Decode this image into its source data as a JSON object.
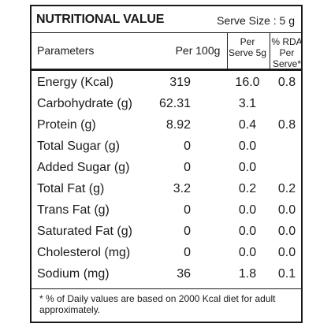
{
  "header": {
    "title": "NUTRITIONAL VALUE",
    "serve_size": "Serve Size : 5 g"
  },
  "columns": {
    "parameters": "Parameters",
    "per_100g": "Per 100g",
    "per_serve": "Per Serve 5g",
    "rda": "% RDA Per Serve*"
  },
  "rows": [
    {
      "name": "Energy (Kcal)",
      "per_100g": "319",
      "per_serve": "16.0",
      "rda": "0.8"
    },
    {
      "name": "Carbohydrate (g)",
      "per_100g": "62.31",
      "per_serve": "3.1",
      "rda": ""
    },
    {
      "name": "Protein (g)",
      "per_100g": "8.92",
      "per_serve": "0.4",
      "rda": "0.8"
    },
    {
      "name": "Total Sugar (g)",
      "per_100g": "0",
      "per_serve": "0.0",
      "rda": ""
    },
    {
      "name": "Added Sugar (g)",
      "per_100g": "0",
      "per_serve": "0.0",
      "rda": ""
    },
    {
      "name": "Total Fat (g)",
      "per_100g": "3.2",
      "per_serve": "0.2",
      "rda": "0.2"
    },
    {
      "name": "Trans Fat (g)",
      "per_100g": "0",
      "per_serve": "0.0",
      "rda": "0.0"
    },
    {
      "name": "Saturated Fat (g)",
      "per_100g": "0",
      "per_serve": "0.0",
      "rda": "0.0"
    },
    {
      "name": "Cholesterol (mg)",
      "per_100g": "0",
      "per_serve": "0.0",
      "rda": "0.0"
    },
    {
      "name": "Sodium (mg)",
      "per_100g": "36",
      "per_serve": "1.8",
      "rda": "0.1"
    }
  ],
  "footnote": "* % of Daily values are based on 2000 Kcal diet for adult approximately."
}
